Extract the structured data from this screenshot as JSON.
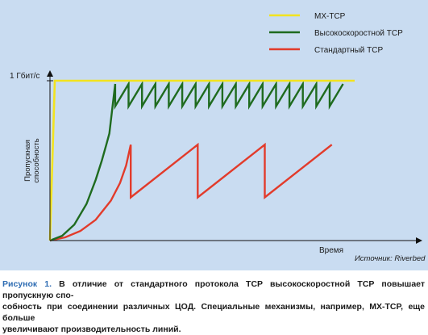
{
  "chart_data": {
    "type": "line",
    "title": "",
    "xlabel": "Время",
    "ylabel": "Пропускная способность",
    "y_tick_label": "1 Гбит/с",
    "source": "Источник: Riverbed",
    "legend_placement": "top-right",
    "grid": false,
    "xlim": [
      0,
      100
    ],
    "ylim": [
      0,
      1.0
    ],
    "series": [
      {
        "name": "MX-TCP",
        "color": "#f2e31f",
        "x": [
          0,
          1.6,
          100
        ],
        "y": [
          0,
          1.0,
          1.0
        ]
      },
      {
        "name": "Высокоскоростной TCP",
        "color": "#1f6b1f",
        "x": [
          0,
          4,
          8,
          12,
          15,
          17,
          18.5,
          19.5,
          21.4,
          21.4,
          25.8,
          25.8,
          30.2,
          30.2,
          34.6,
          34.6,
          39.0,
          39.0,
          43.4,
          43.4,
          47.8,
          47.8,
          52.2,
          52.2,
          56.6,
          56.6,
          61.0,
          61.0,
          65.4,
          65.4,
          69.8,
          69.8,
          74.2,
          74.2,
          78.6,
          78.6,
          83.0,
          83.0,
          87.4,
          87.4,
          91.8,
          91.8,
          96.2
        ],
        "y": [
          0,
          0.03,
          0.1,
          0.23,
          0.38,
          0.5,
          0.6,
          0.67,
          0.98,
          0.84,
          0.98,
          0.84,
          0.98,
          0.84,
          0.98,
          0.84,
          0.98,
          0.84,
          0.98,
          0.84,
          0.98,
          0.84,
          0.98,
          0.84,
          0.98,
          0.84,
          0.98,
          0.84,
          0.98,
          0.84,
          0.98,
          0.84,
          0.98,
          0.84,
          0.98,
          0.84,
          0.98,
          0.84,
          0.98,
          0.84,
          0.98,
          0.84,
          0.98
        ]
      },
      {
        "name": "Стандартный TCP",
        "color": "#e23b2b",
        "x": [
          0,
          5,
          10,
          15,
          20,
          23,
          25,
          26.5,
          26.5,
          48.5,
          48.5,
          70.5,
          70.5,
          92.5
        ],
        "y": [
          0,
          0.02,
          0.06,
          0.13,
          0.25,
          0.36,
          0.47,
          0.6,
          0.27,
          0.6,
          0.27,
          0.6,
          0.27,
          0.6
        ]
      }
    ]
  },
  "caption": {
    "lead": "Рисунок 1.",
    "line1": " В отличие от стандартного протокола TCP высокоскоростной TCP повышает пропускную спо-",
    "line2": "собность при соединении различных ЦОД. Специальные механизмы, например, MX-TCP, еще больше",
    "line3": "увеличивают производительность линий."
  }
}
